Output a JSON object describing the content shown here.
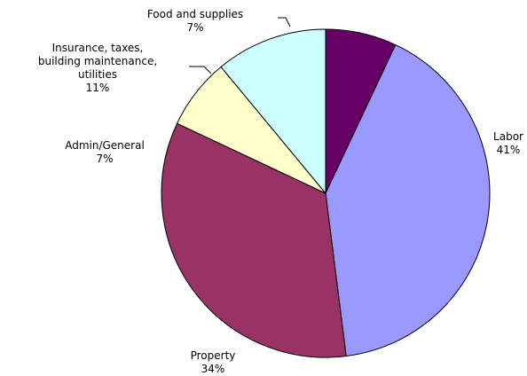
{
  "chart_data": {
    "type": "pie",
    "slices": [
      {
        "key": "food",
        "label_lines": [
          "Food and supplies"
        ],
        "pct_label": "7%",
        "value": 7,
        "color": "#660066"
      },
      {
        "key": "labor",
        "label_lines": [
          "Labor"
        ],
        "pct_label": "41%",
        "value": 41,
        "color": "#9999ff"
      },
      {
        "key": "property",
        "label_lines": [
          "Property"
        ],
        "pct_label": "34%",
        "value": 34,
        "color": "#993366"
      },
      {
        "key": "admin",
        "label_lines": [
          "Admin/General"
        ],
        "pct_label": "7%",
        "value": 7,
        "color": "#ffffcc"
      },
      {
        "key": "insurance",
        "label_lines": [
          "Insurance, taxes,",
          "building maintenance,",
          "utilities"
        ],
        "pct_label": "11%",
        "value": 11,
        "color": "#ccffff"
      }
    ]
  }
}
